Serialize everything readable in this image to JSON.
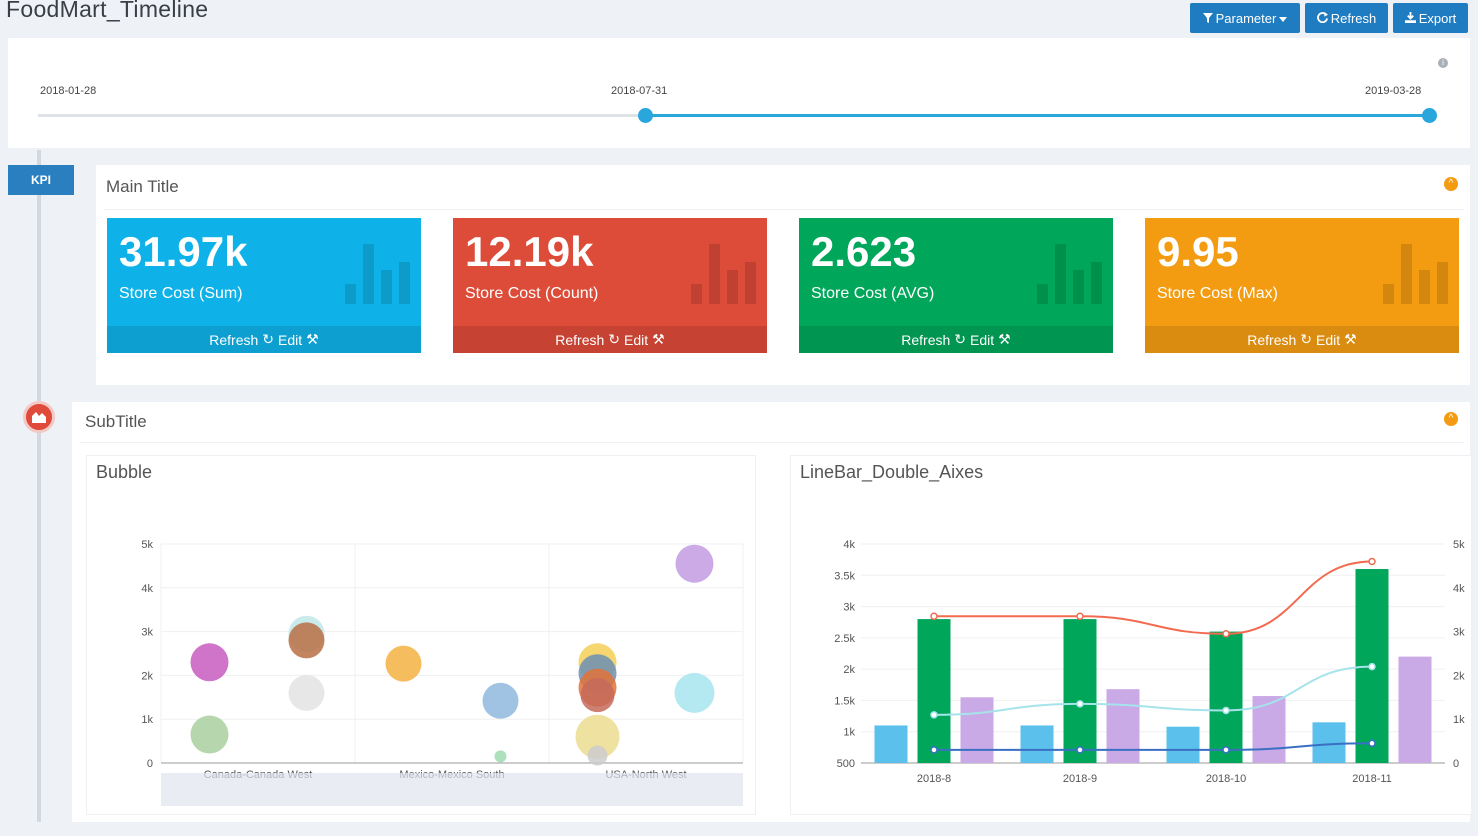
{
  "app": {
    "title": "FoodMart_Timeline"
  },
  "toolbar": {
    "parameter_label": "Parameter",
    "refresh_label": "Refresh",
    "export_label": "Export"
  },
  "timeline": {
    "start_label": "2018-01-28",
    "selected_label": "2018-07-31",
    "end_label": "2019-03-28",
    "info_icon": "info-icon"
  },
  "kpi_section": {
    "tab_label": "KPI",
    "title": "Main Title",
    "cards": [
      {
        "value": "31.97k",
        "label": "Store Cost (Sum)",
        "color": "#0fb2e8"
      },
      {
        "value": "12.19k",
        "label": "Store Cost (Count)",
        "color": "#dd4b39"
      },
      {
        "value": "2.623",
        "label": "Store Cost (AVG)",
        "color": "#00a65a"
      },
      {
        "value": "9.95",
        "label": "Store Cost (Max)",
        "color": "#f39c12"
      }
    ],
    "card_refresh_label": "Refresh",
    "card_edit_label": "Edit"
  },
  "sub_section": {
    "title": "SubTitle",
    "icon": "area-chart-icon"
  },
  "chart_data": [
    {
      "type": "scatter",
      "title": "Bubble",
      "categories": [
        "Canada-Canada West",
        "Mexico-Mexico South",
        "USA-North West"
      ],
      "y_ticks": [
        "0",
        "1k",
        "2k",
        "3k",
        "4k",
        "5k"
      ],
      "ylim": [
        0,
        5000
      ],
      "points": [
        {
          "x": 0.25,
          "y": 2300,
          "r": 19,
          "color": "#c85cbf"
        },
        {
          "x": 0.25,
          "y": 650,
          "r": 19,
          "color": "#a9cfa0"
        },
        {
          "x": 0.75,
          "y": 2950,
          "r": 18,
          "color": "#bfe8e8"
        },
        {
          "x": 0.75,
          "y": 2800,
          "r": 18,
          "color": "#b87044"
        },
        {
          "x": 0.75,
          "y": 1600,
          "r": 18,
          "color": "#e3e3e3"
        },
        {
          "x": 1.25,
          "y": 2270,
          "r": 18,
          "color": "#f5b143"
        },
        {
          "x": 1.75,
          "y": 1420,
          "r": 18,
          "color": "#8fb9de"
        },
        {
          "x": 1.75,
          "y": 150,
          "r": 6,
          "color": "#9fdcb3"
        },
        {
          "x": 2.25,
          "y": 2300,
          "r": 19,
          "color": "#f3cf56"
        },
        {
          "x": 2.25,
          "y": 2050,
          "r": 19,
          "color": "#6c8fb5"
        },
        {
          "x": 2.25,
          "y": 1720,
          "r": 19,
          "color": "#e0723a"
        },
        {
          "x": 2.25,
          "y": 1550,
          "r": 17,
          "color": "#c66a5a"
        },
        {
          "x": 2.25,
          "y": 600,
          "r": 22,
          "color": "#ecdc8e"
        },
        {
          "x": 2.25,
          "y": 170,
          "r": 10,
          "color": "#cdcdcd"
        },
        {
          "x": 2.75,
          "y": 4550,
          "r": 19,
          "color": "#c39be0"
        },
        {
          "x": 2.75,
          "y": 1600,
          "r": 20,
          "color": "#a7e5ee"
        }
      ]
    },
    {
      "type": "bar",
      "title": "LineBar_Double_Aixes",
      "categories": [
        "2018-8",
        "2018-9",
        "2018-10",
        "2018-11"
      ],
      "y_left_ticks": [
        "500",
        "1k",
        "1.5k",
        "2k",
        "2.5k",
        "3k",
        "3.5k",
        "4k"
      ],
      "ylim_left": [
        500,
        4000
      ],
      "y_right_ticks": [
        "0",
        "1k",
        "2k",
        "3k",
        "4k",
        "5k"
      ],
      "ylim_right": [
        0,
        5000
      ],
      "bar_series": [
        {
          "values": [
            1100,
            1100,
            1080,
            1150
          ],
          "color": "#5bc0eb"
        },
        {
          "values": [
            2800,
            2800,
            2600,
            3600
          ],
          "color": "#00a65a"
        },
        {
          "values": [
            1550,
            1680,
            1570,
            2200
          ],
          "color": "#c9a9e6"
        }
      ],
      "line_series": [
        {
          "values": [
            3350,
            3350,
            2950,
            4600
          ],
          "color": "#f26b50"
        },
        {
          "values": [
            1100,
            1350,
            1200,
            2200
          ],
          "color": "#a6e3ea"
        },
        {
          "values": [
            300,
            300,
            300,
            450
          ],
          "color": "#3a6fc4"
        }
      ]
    }
  ]
}
